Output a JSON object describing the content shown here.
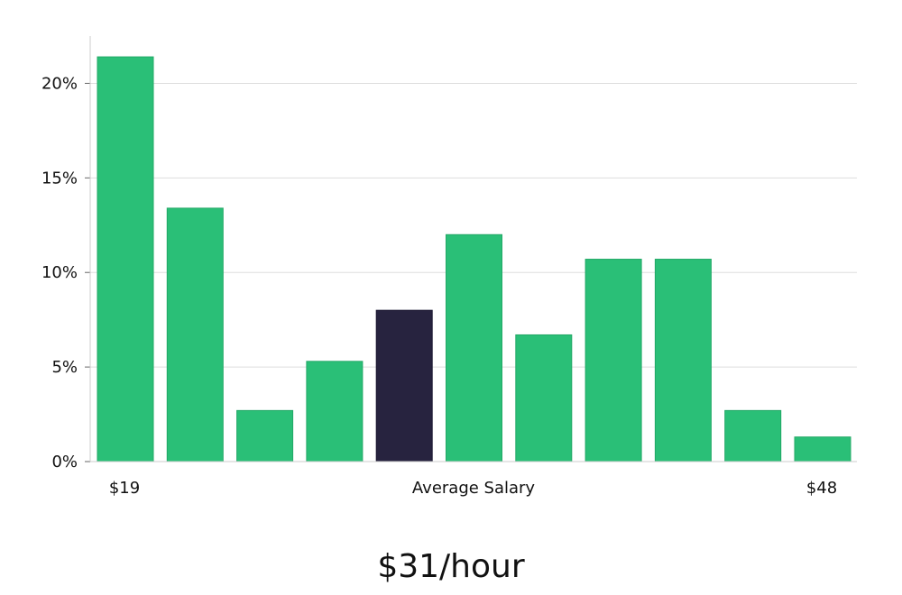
{
  "chart_data": {
    "type": "bar",
    "title": "",
    "xlabel": "Average Salary",
    "ylabel": "",
    "x_end_labels": [
      "$19",
      "$48"
    ],
    "values": [
      21.4,
      13.4,
      2.7,
      5.3,
      8.0,
      12.0,
      6.7,
      10.7,
      10.7,
      2.7,
      1.3
    ],
    "highlight_index": 4,
    "ylim": [
      0,
      22.5
    ],
    "yticks": [
      0,
      5,
      10,
      15,
      20
    ],
    "ytick_labels": [
      "0%",
      "5%",
      "10%",
      "15%",
      "20%"
    ],
    "grid": true,
    "colors": {
      "bar": "#2abf77",
      "highlight": "#27233f",
      "grid": "#dddddd",
      "axis": "#cccccc"
    }
  },
  "summary": {
    "value": "$31/hour"
  }
}
